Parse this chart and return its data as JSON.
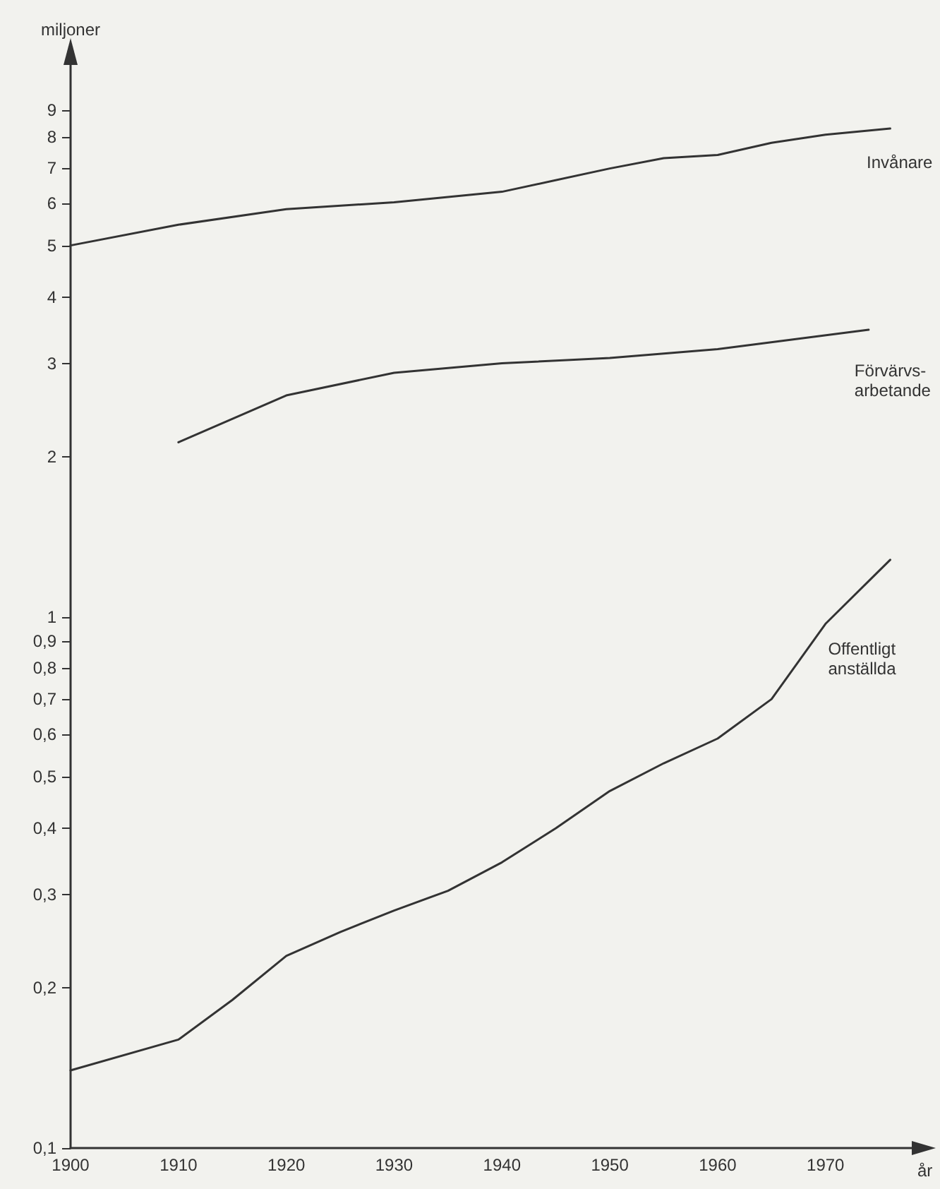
{
  "chart_data": {
    "type": "line",
    "ylabel": "miljoner",
    "xlabel": "år",
    "log": "y",
    "grid": false,
    "legend": false,
    "marker": "none",
    "line_style": "solid",
    "xlim": [
      1900,
      1978
    ],
    "xticks": [
      1900,
      1910,
      1920,
      1930,
      1940,
      1950,
      1960,
      1970
    ],
    "ylim": [
      0.1,
      11
    ],
    "yticks": [
      {
        "value": 0.1,
        "label": "0,1"
      },
      {
        "value": 0.2,
        "label": "0,2"
      },
      {
        "value": 0.3,
        "label": "0,3"
      },
      {
        "value": 0.4,
        "label": "0,4"
      },
      {
        "value": 0.5,
        "label": "0,5"
      },
      {
        "value": 0.6,
        "label": "0,6"
      },
      {
        "value": 0.7,
        "label": "0,7"
      },
      {
        "value": 0.8,
        "label": "0,8"
      },
      {
        "value": 0.9,
        "label": "0,9"
      },
      1,
      2,
      3,
      4,
      5,
      6,
      7,
      8,
      9
    ],
    "series": [
      {
        "name": "Invånare",
        "color": "#333333",
        "x": [
          1900,
          1910,
          1920,
          1930,
          1940,
          1950,
          1955,
          1960,
          1965,
          1970,
          1976
        ],
        "values": [
          5.0,
          5.47,
          5.85,
          6.03,
          6.31,
          6.98,
          7.3,
          7.4,
          7.8,
          8.08,
          8.3
        ]
      },
      {
        "name": "Förvärvs- arbetande",
        "color": "#333333",
        "x": [
          1910,
          1920,
          1930,
          1940,
          1950,
          1960,
          1974
        ],
        "values": [
          2.13,
          2.61,
          2.88,
          3.0,
          3.07,
          3.19,
          3.47
        ]
      },
      {
        "name": "Offentligt anställda",
        "color": "#333333",
        "x": [
          1900,
          1910,
          1915,
          1920,
          1925,
          1930,
          1935,
          1940,
          1945,
          1950,
          1955,
          1960,
          1965,
          1970,
          1976
        ],
        "values": [
          0.14,
          0.16,
          0.19,
          0.23,
          0.255,
          0.28,
          0.305,
          0.345,
          0.4,
          0.47,
          0.53,
          0.59,
          0.7,
          0.97,
          1.28
        ]
      }
    ]
  }
}
